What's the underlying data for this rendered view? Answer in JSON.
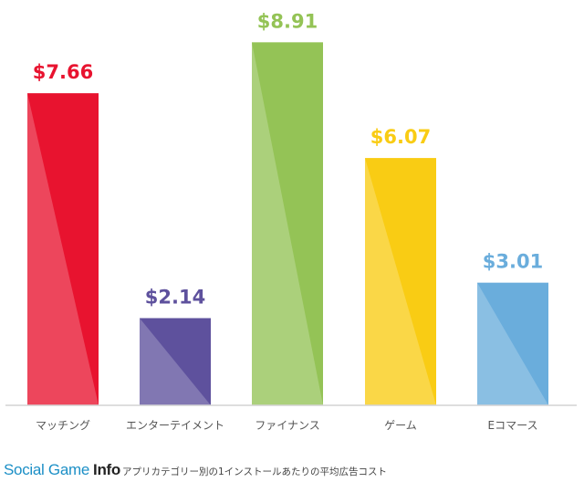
{
  "chart_data": {
    "type": "bar",
    "categories": [
      "マッチング",
      "エンターテイメント",
      "ファイナンス",
      "ゲーム",
      "Eコマース"
    ],
    "values": [
      7.66,
      2.14,
      8.91,
      6.07,
      3.01
    ],
    "value_labels": [
      "$7.66",
      "$2.14",
      "$8.91",
      "$6.07",
      "$3.01"
    ],
    "colors": [
      "#e8132f",
      "#5e519d",
      "#94c356",
      "#f9cc14",
      "#6aaddc"
    ],
    "ylim": [
      0,
      9.5
    ],
    "grid": false,
    "legend": "none"
  },
  "footer": {
    "brand_regular": "Social Game",
    "brand_bold": "Info",
    "caption": "アプリカテゴリー別の1インストールあたりの平均広告コスト"
  }
}
